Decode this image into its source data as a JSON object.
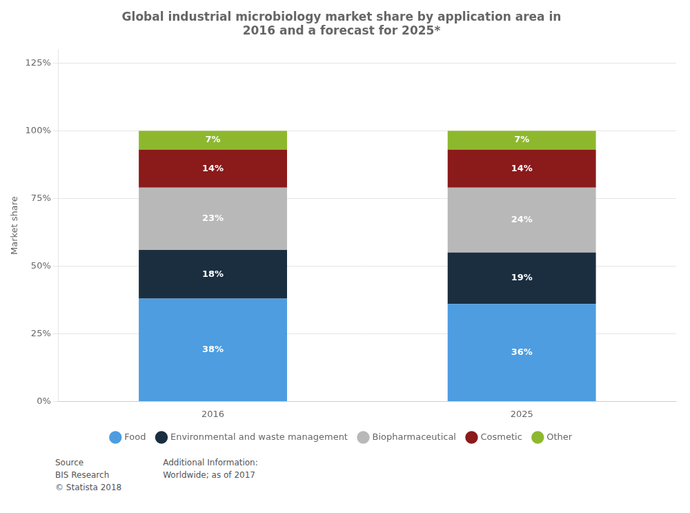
{
  "chart_data": {
    "type": "bar",
    "title": "Global industrial microbiology market share by application area in\n2016 and a forecast for 2025*",
    "categories": [
      "2016",
      "2025"
    ],
    "series": [
      {
        "name": "Food",
        "color": "#4d9de0",
        "values": [
          38,
          36
        ],
        "value_labels": [
          "38%",
          "36%"
        ]
      },
      {
        "name": "Environmental and waste management",
        "color": "#1a2e40",
        "values": [
          18,
          19
        ],
        "value_labels": [
          "18%",
          "19%"
        ]
      },
      {
        "name": "Biopharmaceutical",
        "color": "#b8b8b8",
        "values": [
          23,
          24
        ],
        "value_labels": [
          "23%",
          "24%"
        ]
      },
      {
        "name": "Cosmetic",
        "color": "#8b1a1a",
        "values": [
          14,
          14
        ],
        "value_labels": [
          "14%",
          "14%"
        ]
      },
      {
        "name": "Other",
        "color": "#8db82e",
        "values": [
          7,
          7
        ],
        "value_labels": [
          "7%",
          "7%"
        ]
      }
    ],
    "stacked": true,
    "ylabel": "Market share",
    "ylim": [
      0,
      130
    ],
    "yticks": [
      {
        "value": 0,
        "label": "0%"
      },
      {
        "value": 25,
        "label": "25%"
      },
      {
        "value": 50,
        "label": "50%"
      },
      {
        "value": 75,
        "label": "75%"
      },
      {
        "value": 100,
        "label": "100%"
      },
      {
        "value": 125,
        "label": "125%"
      }
    ],
    "grid": true,
    "legend": "bottom",
    "data_labels": true,
    "annotations": [
      "Source\nBIS Research\n© Statista 2018",
      "Additional Information:\nWorldwide; as of 2017"
    ]
  }
}
